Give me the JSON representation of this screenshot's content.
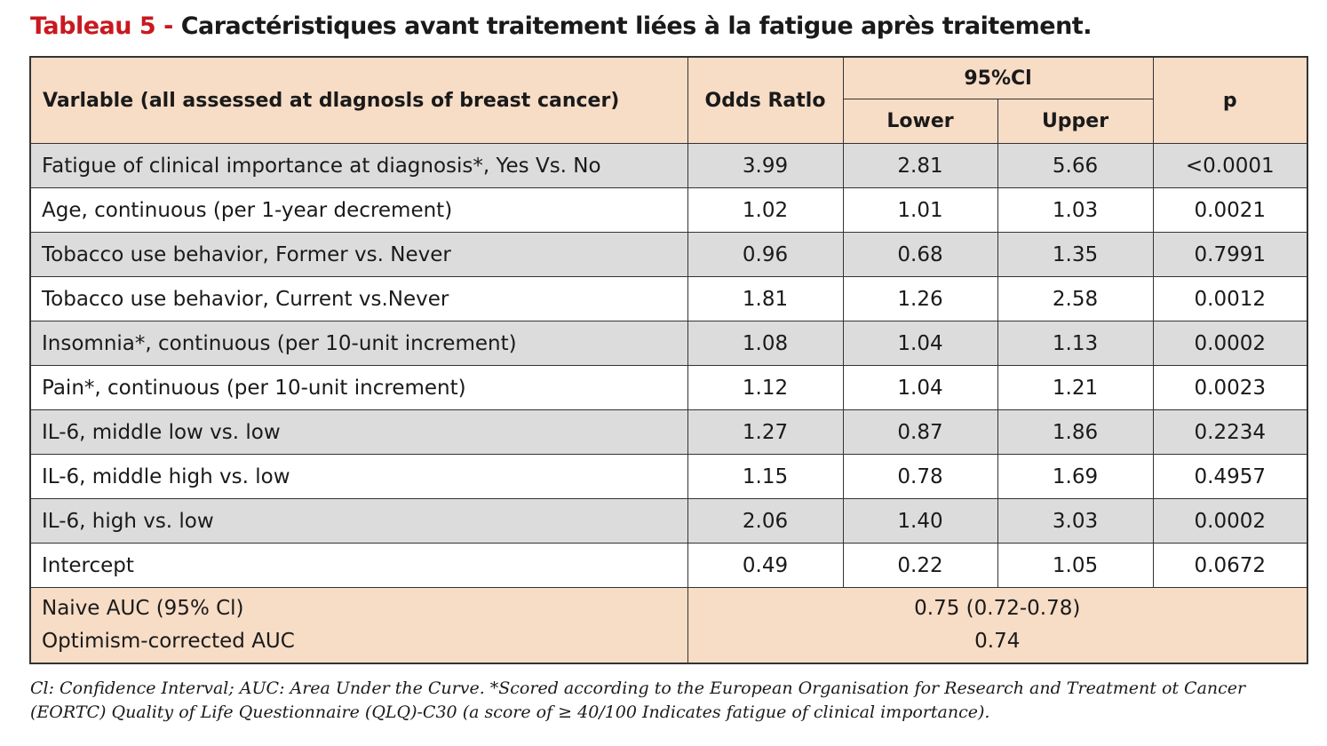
{
  "title": {
    "number": "Tableau 5 -",
    "text": "Caractéristiques avant traitement liées à la fatigue après traitement."
  },
  "header": {
    "variable": "Varlable (all assessed at dlagnosls of breast cancer)",
    "odds_ratio": "Odds Ratlo",
    "ci": "95%Cl",
    "lower": "Lower",
    "upper": "Upper",
    "p": "p"
  },
  "rows": [
    {
      "label": "Fatigue of clinical importance at diagnosis*, Yes Vs. No",
      "or": "3.99",
      "lower": "2.81",
      "upper": "5.66",
      "p": "<0.0001"
    },
    {
      "label": "Age, continuous (per 1-year decrement)",
      "or": "1.02",
      "lower": "1.01",
      "upper": "1.03",
      "p": "0.0021"
    },
    {
      "label": "Tobacco use behavior, Former vs. Never",
      "or": "0.96",
      "lower": "0.68",
      "upper": "1.35",
      "p": "0.7991"
    },
    {
      "label": "Tobacco use behavior, Current vs.Never",
      "or": "1.81",
      "lower": "1.26",
      "upper": "2.58",
      "p": "0.0012"
    },
    {
      "label": "Insomnia*, continuous (per 10-unit increment)",
      "or": "1.08",
      "lower": "1.04",
      "upper": "1.13",
      "p": "0.0002"
    },
    {
      "label": "Pain*, continuous (per 10-unit increment)",
      "or": "1.12",
      "lower": "1.04",
      "upper": "1.21",
      "p": "0.0023"
    },
    {
      "label": "IL-6, middle low vs. low",
      "or": "1.27",
      "lower": "0.87",
      "upper": "1.86",
      "p": "0.2234"
    },
    {
      "label": "IL-6, middle high vs. low",
      "or": "1.15",
      "lower": "0.78",
      "upper": "1.69",
      "p": "0.4957"
    },
    {
      "label": "IL-6, high vs. low",
      "or": "2.06",
      "lower": "1.40",
      "upper": "3.03",
      "p": "0.0002"
    },
    {
      "label": "Intercept",
      "or": "0.49",
      "lower": "0.22",
      "upper": "1.05",
      "p": "0.0672"
    }
  ],
  "auc": {
    "naive_label": "Naive AUC (95% Cl)",
    "optimism_label": "Optimism-corrected AUC",
    "naive_value": "0.75 (0.72-0.78)",
    "optimism_value": "0.74"
  },
  "footnote": "Cl: Confidence Interval; AUC: Area Under the Curve. *Scored according to the European Organisation for Research and Treatment ot Cancer (EORTC) Quality of Life Questionnaire (QLQ)-C30 (a score of ≥ 40/100 Indicates fatigue of clinical importance).",
  "colors": {
    "title_accent": "#c8191f",
    "header_bg": "#f7dcc6",
    "stripe_bg": "#dcdcdc"
  }
}
